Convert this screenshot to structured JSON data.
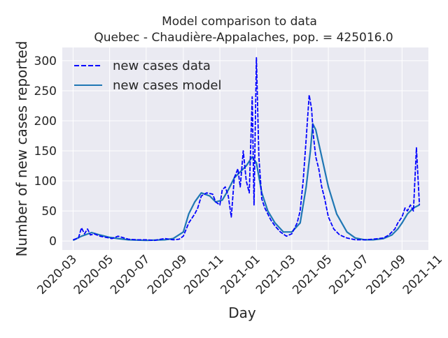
{
  "chart_data": {
    "type": "line",
    "title": "Model comparison to data",
    "subtitle": "Quebec - Chaudière-Appalaches, pop. = 425016.0",
    "xlabel": "Day",
    "ylabel": "Number of new cases reported",
    "xlim": [
      "2020-02-12",
      "2021-10-15"
    ],
    "ylim": [
      -15,
      322
    ],
    "x_ticks": [
      "2020-03",
      "2020-05",
      "2020-07",
      "2020-09",
      "2020-11",
      "2021-01",
      "2021-03",
      "2021-05",
      "2021-07",
      "2021-09",
      "2021-11"
    ],
    "y_ticks": [
      0,
      50,
      100,
      150,
      200,
      250,
      300
    ],
    "grid": true,
    "legend_position": "upper-left",
    "colors": {
      "background": "#eaeaf2",
      "grid": "#ffffff",
      "data": "#0000ff",
      "model": "#1f77b4"
    },
    "legend": [
      "new cases data",
      "new cases model"
    ],
    "series": [
      {
        "name": "new cases data",
        "style": "dashed",
        "x": [
          "2020-03-01",
          "2020-03-10",
          "2020-03-15",
          "2020-03-20",
          "2020-03-25",
          "2020-03-30",
          "2020-04-05",
          "2020-04-15",
          "2020-04-25",
          "2020-05-05",
          "2020-05-15",
          "2020-06-01",
          "2020-06-15",
          "2020-07-01",
          "2020-07-15",
          "2020-08-01",
          "2020-08-15",
          "2020-08-25",
          "2020-09-01",
          "2020-09-10",
          "2020-09-20",
          "2020-09-25",
          "2020-10-01",
          "2020-10-10",
          "2020-10-20",
          "2020-10-25",
          "2020-11-01",
          "2020-11-05",
          "2020-11-10",
          "2020-11-15",
          "2020-11-20",
          "2020-11-25",
          "2020-12-01",
          "2020-12-05",
          "2020-12-10",
          "2020-12-15",
          "2020-12-20",
          "2020-12-25",
          "2020-12-28",
          "2021-01-01",
          "2021-01-05",
          "2021-01-10",
          "2021-01-15",
          "2021-01-20",
          "2021-01-25",
          "2021-02-01",
          "2021-02-10",
          "2021-02-20",
          "2021-03-01",
          "2021-03-10",
          "2021-03-15",
          "2021-03-20",
          "2021-03-25",
          "2021-03-30",
          "2021-04-03",
          "2021-04-06",
          "2021-04-10",
          "2021-04-15",
          "2021-04-20",
          "2021-04-25",
          "2021-05-01",
          "2021-05-10",
          "2021-05-20",
          "2021-06-01",
          "2021-06-15",
          "2021-07-01",
          "2021-07-15",
          "2021-08-01",
          "2021-08-10",
          "2021-08-20",
          "2021-08-25",
          "2021-09-01",
          "2021-09-06",
          "2021-09-10",
          "2021-09-15",
          "2021-09-20",
          "2021-09-25",
          "2021-09-30"
        ],
        "y": [
          2,
          5,
          22,
          12,
          20,
          10,
          12,
          8,
          6,
          4,
          8,
          3,
          2,
          2,
          1,
          4,
          2,
          3,
          8,
          30,
          45,
          55,
          75,
          80,
          78,
          65,
          60,
          85,
          90,
          75,
          40,
          105,
          120,
          90,
          150,
          100,
          80,
          240,
          60,
          305,
          140,
          70,
          55,
          45,
          35,
          25,
          15,
          8,
          12,
          30,
          50,
          100,
          170,
          243,
          220,
          175,
          140,
          120,
          90,
          70,
          40,
          20,
          10,
          5,
          2,
          2,
          3,
          5,
          10,
          20,
          30,
          40,
          55,
          50,
          60,
          50,
          155,
          60
        ]
      },
      {
        "name": "new cases model",
        "style": "solid",
        "x": [
          "2020-03-01",
          "2020-03-15",
          "2020-04-01",
          "2020-04-15",
          "2020-05-01",
          "2020-05-15",
          "2020-06-01",
          "2020-07-01",
          "2020-08-01",
          "2020-08-15",
          "2020-09-01",
          "2020-09-10",
          "2020-09-20",
          "2020-10-01",
          "2020-10-15",
          "2020-10-25",
          "2020-11-05",
          "2020-11-15",
          "2020-11-25",
          "2020-12-05",
          "2020-12-15",
          "2020-12-25",
          "2021-01-01",
          "2021-01-10",
          "2021-01-20",
          "2021-02-01",
          "2021-02-15",
          "2021-03-01",
          "2021-03-15",
          "2021-03-25",
          "2021-04-01",
          "2021-04-05",
          "2021-04-10",
          "2021-04-20",
          "2021-05-01",
          "2021-05-15",
          "2021-06-01",
          "2021-06-15",
          "2021-07-01",
          "2021-07-15",
          "2021-08-01",
          "2021-08-15",
          "2021-08-25",
          "2021-09-01",
          "2021-09-10",
          "2021-09-20",
          "2021-09-30"
        ],
        "y": [
          1,
          8,
          14,
          10,
          6,
          4,
          2,
          1,
          2,
          4,
          15,
          45,
          65,
          80,
          75,
          65,
          68,
          85,
          105,
          115,
          125,
          140,
          130,
          80,
          50,
          30,
          15,
          15,
          30,
          90,
          150,
          195,
          185,
          140,
          90,
          45,
          15,
          5,
          2,
          2,
          4,
          10,
          20,
          30,
          45,
          55,
          60
        ]
      }
    ]
  }
}
